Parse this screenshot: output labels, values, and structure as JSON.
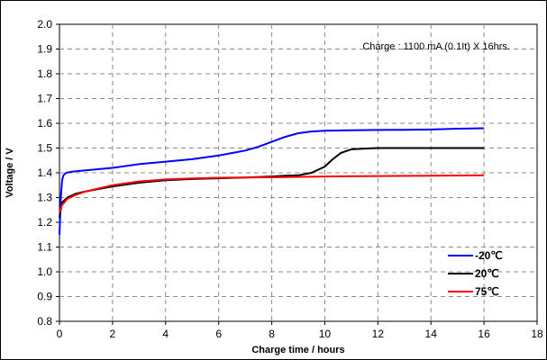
{
  "chart_data": {
    "type": "line",
    "xlabel": "Charge time / hours",
    "ylabel": "Voltage / V",
    "annotation": "Charge : 1100 mA (0.1It) X 16hrs.",
    "xlim": [
      0,
      18
    ],
    "ylim": [
      0.8,
      2.0
    ],
    "x_ticks": [
      "0",
      "2",
      "4",
      "6",
      "8",
      "10",
      "12",
      "14",
      "16",
      "18"
    ],
    "y_ticks": [
      "0.8",
      "0.9",
      "1.0",
      "1.1",
      "1.2",
      "1.3",
      "1.4",
      "1.5",
      "1.6",
      "1.7",
      "1.8",
      "1.9",
      "2.0"
    ],
    "grid": true,
    "legend_position": "bottom-right",
    "series": [
      {
        "name": "-20℃",
        "color": "#0000ff",
        "points": [
          [
            0,
            1.15
          ],
          [
            0.05,
            1.3
          ],
          [
            0.1,
            1.37
          ],
          [
            0.15,
            1.39
          ],
          [
            0.25,
            1.4
          ],
          [
            0.5,
            1.405
          ],
          [
            1,
            1.41
          ],
          [
            2,
            1.42
          ],
          [
            3,
            1.435
          ],
          [
            4,
            1.445
          ],
          [
            5,
            1.455
          ],
          [
            6,
            1.47
          ],
          [
            7,
            1.49
          ],
          [
            7.5,
            1.505
          ],
          [
            8,
            1.525
          ],
          [
            8.5,
            1.545
          ],
          [
            9,
            1.56
          ],
          [
            9.5,
            1.567
          ],
          [
            10,
            1.57
          ],
          [
            11,
            1.572
          ],
          [
            12,
            1.573
          ],
          [
            13,
            1.574
          ],
          [
            14,
            1.575
          ],
          [
            15,
            1.578
          ],
          [
            16,
            1.58
          ]
        ]
      },
      {
        "name": "20℃",
        "color": "#000000",
        "points": [
          [
            0,
            1.22
          ],
          [
            0.1,
            1.28
          ],
          [
            0.3,
            1.3
          ],
          [
            0.6,
            1.315
          ],
          [
            1,
            1.325
          ],
          [
            2,
            1.345
          ],
          [
            3,
            1.36
          ],
          [
            4,
            1.37
          ],
          [
            5,
            1.375
          ],
          [
            6,
            1.378
          ],
          [
            7,
            1.381
          ],
          [
            8,
            1.385
          ],
          [
            8.5,
            1.388
          ],
          [
            9,
            1.39
          ],
          [
            9.5,
            1.4
          ],
          [
            10,
            1.425
          ],
          [
            10.3,
            1.455
          ],
          [
            10.6,
            1.48
          ],
          [
            11,
            1.495
          ],
          [
            11.5,
            1.498
          ],
          [
            12,
            1.5
          ],
          [
            14,
            1.5
          ],
          [
            16,
            1.5
          ]
        ]
      },
      {
        "name": "75℃",
        "color": "#ff0000",
        "points": [
          [
            0,
            1.24
          ],
          [
            0.1,
            1.27
          ],
          [
            0.3,
            1.295
          ],
          [
            0.6,
            1.31
          ],
          [
            1,
            1.325
          ],
          [
            2,
            1.35
          ],
          [
            3,
            1.365
          ],
          [
            4,
            1.373
          ],
          [
            5,
            1.377
          ],
          [
            6,
            1.38
          ],
          [
            8,
            1.382
          ],
          [
            10,
            1.385
          ],
          [
            12,
            1.387
          ],
          [
            14,
            1.388
          ],
          [
            16,
            1.39
          ]
        ]
      }
    ]
  }
}
